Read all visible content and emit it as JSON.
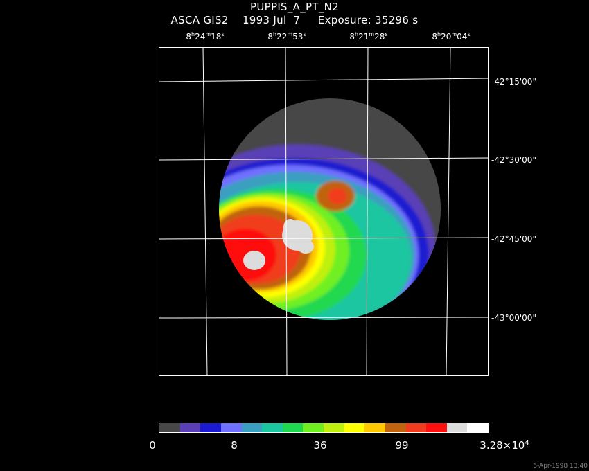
{
  "header": {
    "object": "PUPPIS_A_PT_N2",
    "instrument": "ASCA GIS2",
    "date": "1993 Jul  7",
    "exposure": "Exposure: 35296 s"
  },
  "ra_labels": [
    {
      "h": "8",
      "m": "24",
      "s": "18"
    },
    {
      "h": "8",
      "m": "22",
      "s": "53"
    },
    {
      "h": "8",
      "m": "21",
      "s": "28"
    },
    {
      "h": "8",
      "m": "20",
      "s": "04"
    }
  ],
  "dec_labels": [
    "-42°15'00\"",
    "-42°30'00\"",
    "-42°45'00\"",
    "-43°00'00\""
  ],
  "colorbar": {
    "colors": [
      "#474747",
      "#5a3fb6",
      "#1a1ad0",
      "#7070ff",
      "#3a9fc0",
      "#1cc6a0",
      "#20d850",
      "#70f020",
      "#c0f010",
      "#ffff00",
      "#ffc800",
      "#c06410",
      "#f03c1e",
      "#ff1010",
      "#dcdcdc",
      "#ffffff"
    ],
    "ticks": [
      "0",
      "8",
      "36",
      "99"
    ],
    "max_mantissa": "3.28×10",
    "max_exp": "4"
  },
  "timestamp": "6-Apr-1998 13:40"
}
